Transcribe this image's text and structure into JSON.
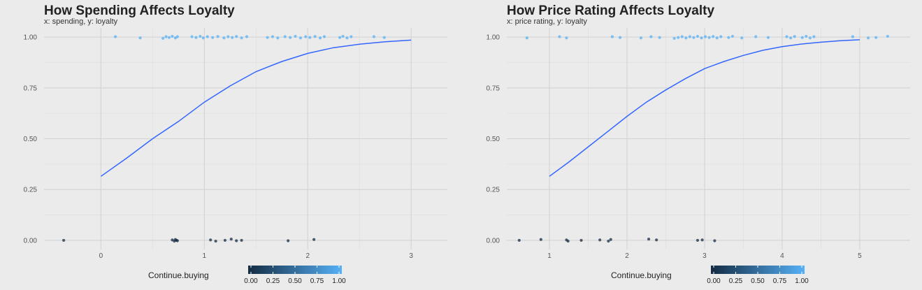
{
  "chart_data": [
    {
      "type": "scatter",
      "title": "How Spending Affects Loyalty",
      "subtitle": "x: spending, y: loyalty",
      "xlabel": "",
      "ylabel": "",
      "xlim": [
        -0.55,
        3.35
      ],
      "ylim": [
        -0.045,
        1.045
      ],
      "x_ticks": [
        0,
        1,
        2,
        3
      ],
      "x_tick_labels": [
        "0",
        "1",
        "2",
        "3"
      ],
      "y_ticks": [
        0,
        0.25,
        0.5,
        0.75,
        1
      ],
      "y_tick_labels": [
        "0.00",
        "0.25",
        "0.50",
        "0.75",
        "1.00"
      ],
      "grid": true,
      "legend": {
        "title": "Continue.buying",
        "labels": [
          "0.00",
          "0.25",
          "0.50",
          "0.75",
          "1.00"
        ],
        "position": "bottom"
      },
      "colors": {
        "low": "#132b43",
        "high": "#56b1f7",
        "curve": "#3366ff"
      },
      "points": [
        {
          "x": -0.36,
          "y": 0,
          "c": 0
        },
        {
          "x": 0.69,
          "y": 0.002,
          "c": 0
        },
        {
          "x": 0.71,
          "y": -0.004,
          "c": 0
        },
        {
          "x": 0.72,
          "y": 0.004,
          "c": 0
        },
        {
          "x": 0.73,
          "y": 0,
          "c": 0
        },
        {
          "x": 0.74,
          "y": -0.002,
          "c": 0
        },
        {
          "x": 1.06,
          "y": 0.002,
          "c": 0
        },
        {
          "x": 1.11,
          "y": -0.004,
          "c": 0
        },
        {
          "x": 1.2,
          "y": 0,
          "c": 0
        },
        {
          "x": 1.26,
          "y": 0.006,
          "c": 0
        },
        {
          "x": 1.31,
          "y": -0.002,
          "c": 0
        },
        {
          "x": 1.36,
          "y": 0,
          "c": 0
        },
        {
          "x": 1.81,
          "y": -0.002,
          "c": 0
        },
        {
          "x": 2.06,
          "y": 0.004,
          "c": 0
        },
        {
          "x": 0.14,
          "y": 1.002,
          "c": 1
        },
        {
          "x": 0.38,
          "y": 0.996,
          "c": 1
        },
        {
          "x": 0.6,
          "y": 0.994,
          "c": 1
        },
        {
          "x": 0.63,
          "y": 1.002,
          "c": 1
        },
        {
          "x": 0.66,
          "y": 0.998,
          "c": 1
        },
        {
          "x": 0.69,
          "y": 1.004,
          "c": 1
        },
        {
          "x": 0.72,
          "y": 0.996,
          "c": 1
        },
        {
          "x": 0.74,
          "y": 1.002,
          "c": 1
        },
        {
          "x": 0.88,
          "y": 1.002,
          "c": 1
        },
        {
          "x": 0.92,
          "y": 0.998,
          "c": 1
        },
        {
          "x": 0.96,
          "y": 1.004,
          "c": 1
        },
        {
          "x": 0.99,
          "y": 0.996,
          "c": 1
        },
        {
          "x": 1.03,
          "y": 1.002,
          "c": 1
        },
        {
          "x": 1.08,
          "y": 0.998,
          "c": 1
        },
        {
          "x": 1.13,
          "y": 1.003,
          "c": 1
        },
        {
          "x": 1.19,
          "y": 0.996,
          "c": 1
        },
        {
          "x": 1.23,
          "y": 1.002,
          "c": 1
        },
        {
          "x": 1.27,
          "y": 0.998,
          "c": 1
        },
        {
          "x": 1.31,
          "y": 1.003,
          "c": 1
        },
        {
          "x": 1.36,
          "y": 0.996,
          "c": 1
        },
        {
          "x": 1.41,
          "y": 1.002,
          "c": 1
        },
        {
          "x": 1.61,
          "y": 0.998,
          "c": 1
        },
        {
          "x": 1.66,
          "y": 1.002,
          "c": 1
        },
        {
          "x": 1.71,
          "y": 0.996,
          "c": 1
        },
        {
          "x": 1.78,
          "y": 1.002,
          "c": 1
        },
        {
          "x": 1.83,
          "y": 0.998,
          "c": 1
        },
        {
          "x": 1.88,
          "y": 1.004,
          "c": 1
        },
        {
          "x": 1.93,
          "y": 0.996,
          "c": 1
        },
        {
          "x": 1.98,
          "y": 1.002,
          "c": 1
        },
        {
          "x": 2.02,
          "y": 0.998,
          "c": 1
        },
        {
          "x": 2.07,
          "y": 1.003,
          "c": 1
        },
        {
          "x": 2.12,
          "y": 0.996,
          "c": 1
        },
        {
          "x": 2.16,
          "y": 1.002,
          "c": 1
        },
        {
          "x": 2.31,
          "y": 0.998,
          "c": 1
        },
        {
          "x": 2.34,
          "y": 1.004,
          "c": 1
        },
        {
          "x": 2.38,
          "y": 0.996,
          "c": 1
        },
        {
          "x": 2.42,
          "y": 1.002,
          "c": 1
        },
        {
          "x": 2.64,
          "y": 1.002,
          "c": 1
        },
        {
          "x": 2.74,
          "y": 0.998,
          "c": 1
        }
      ],
      "curve": {
        "x": [
          0,
          0.25,
          0.5,
          0.75,
          1,
          1.25,
          1.5,
          1.75,
          2,
          2.25,
          2.5,
          2.75,
          3
        ],
        "y": [
          0.315,
          0.405,
          0.5,
          0.585,
          0.68,
          0.76,
          0.83,
          0.88,
          0.92,
          0.948,
          0.965,
          0.977,
          0.985
        ]
      }
    },
    {
      "type": "scatter",
      "title": "How Price Rating Affects Loyalty",
      "subtitle": "x: price rating, y: loyalty",
      "xlabel": "",
      "ylabel": "",
      "xlim": [
        0.45,
        5.65
      ],
      "ylim": [
        -0.045,
        1.045
      ],
      "x_ticks": [
        1,
        2,
        3,
        4,
        5
      ],
      "x_tick_labels": [
        "1",
        "2",
        "3",
        "4",
        "5"
      ],
      "y_ticks": [
        0,
        0.25,
        0.5,
        0.75,
        1
      ],
      "y_tick_labels": [
        "0.00",
        "0.25",
        "0.50",
        "0.75",
        "1.00"
      ],
      "grid": true,
      "legend": {
        "title": "Continue.buying",
        "labels": [
          "0.00",
          "0.25",
          "0.50",
          "0.75",
          "1.00"
        ],
        "position": "bottom"
      },
      "colors": {
        "low": "#132b43",
        "high": "#56b1f7",
        "curve": "#3366ff"
      },
      "points": [
        {
          "x": 0.61,
          "y": 0,
          "c": 0
        },
        {
          "x": 0.89,
          "y": 0.004,
          "c": 0
        },
        {
          "x": 1.22,
          "y": 0.002,
          "c": 0
        },
        {
          "x": 1.24,
          "y": -0.004,
          "c": 0
        },
        {
          "x": 1.41,
          "y": 0,
          "c": 0
        },
        {
          "x": 1.65,
          "y": 0.002,
          "c": 0
        },
        {
          "x": 1.76,
          "y": -0.004,
          "c": 0
        },
        {
          "x": 1.79,
          "y": 0.004,
          "c": 0
        },
        {
          "x": 2.28,
          "y": 0.006,
          "c": 0
        },
        {
          "x": 2.38,
          "y": 0.002,
          "c": 0
        },
        {
          "x": 2.91,
          "y": 0,
          "c": 0
        },
        {
          "x": 2.97,
          "y": 0.002,
          "c": 0
        },
        {
          "x": 3.13,
          "y": -0.002,
          "c": 0
        },
        {
          "x": 0.71,
          "y": 0.996,
          "c": 1
        },
        {
          "x": 1.13,
          "y": 1.002,
          "c": 1
        },
        {
          "x": 1.22,
          "y": 0.996,
          "c": 1
        },
        {
          "x": 1.81,
          "y": 1.002,
          "c": 1
        },
        {
          "x": 1.91,
          "y": 0.998,
          "c": 1
        },
        {
          "x": 2.18,
          "y": 0.996,
          "c": 1
        },
        {
          "x": 2.31,
          "y": 1.002,
          "c": 1
        },
        {
          "x": 2.42,
          "y": 0.998,
          "c": 1
        },
        {
          "x": 2.61,
          "y": 0.994,
          "c": 1
        },
        {
          "x": 2.66,
          "y": 0.998,
          "c": 1
        },
        {
          "x": 2.71,
          "y": 1.002,
          "c": 1
        },
        {
          "x": 2.76,
          "y": 0.996,
          "c": 1
        },
        {
          "x": 2.81,
          "y": 1.002,
          "c": 1
        },
        {
          "x": 2.86,
          "y": 0.998,
          "c": 1
        },
        {
          "x": 2.91,
          "y": 1.004,
          "c": 1
        },
        {
          "x": 2.96,
          "y": 0.996,
          "c": 1
        },
        {
          "x": 3.01,
          "y": 1.002,
          "c": 1
        },
        {
          "x": 3.06,
          "y": 0.998,
          "c": 1
        },
        {
          "x": 3.11,
          "y": 1.003,
          "c": 1
        },
        {
          "x": 3.16,
          "y": 0.996,
          "c": 1
        },
        {
          "x": 3.21,
          "y": 1.002,
          "c": 1
        },
        {
          "x": 3.31,
          "y": 0.998,
          "c": 1
        },
        {
          "x": 3.36,
          "y": 1.004,
          "c": 1
        },
        {
          "x": 3.48,
          "y": 0.996,
          "c": 1
        },
        {
          "x": 3.66,
          "y": 1.002,
          "c": 1
        },
        {
          "x": 3.82,
          "y": 0.998,
          "c": 1
        },
        {
          "x": 4.06,
          "y": 1.002,
          "c": 1
        },
        {
          "x": 4.11,
          "y": 0.996,
          "c": 1
        },
        {
          "x": 4.16,
          "y": 1.003,
          "c": 1
        },
        {
          "x": 4.26,
          "y": 0.998,
          "c": 1
        },
        {
          "x": 4.31,
          "y": 1.004,
          "c": 1
        },
        {
          "x": 4.36,
          "y": 0.996,
          "c": 1
        },
        {
          "x": 4.41,
          "y": 1.002,
          "c": 1
        },
        {
          "x": 4.91,
          "y": 1.002,
          "c": 1
        },
        {
          "x": 5.11,
          "y": 0.996,
          "c": 1
        },
        {
          "x": 5.21,
          "y": 0.998,
          "c": 1
        },
        {
          "x": 5.36,
          "y": 1.004,
          "c": 1
        }
      ],
      "curve": {
        "x": [
          1,
          1.25,
          1.5,
          1.75,
          2,
          2.25,
          2.5,
          2.75,
          3,
          3.25,
          3.5,
          3.75,
          4,
          4.25,
          4.5,
          4.75,
          5
        ],
        "y": [
          0.315,
          0.385,
          0.46,
          0.535,
          0.61,
          0.68,
          0.74,
          0.795,
          0.845,
          0.88,
          0.91,
          0.935,
          0.953,
          0.966,
          0.975,
          0.982,
          0.987
        ]
      }
    }
  ]
}
